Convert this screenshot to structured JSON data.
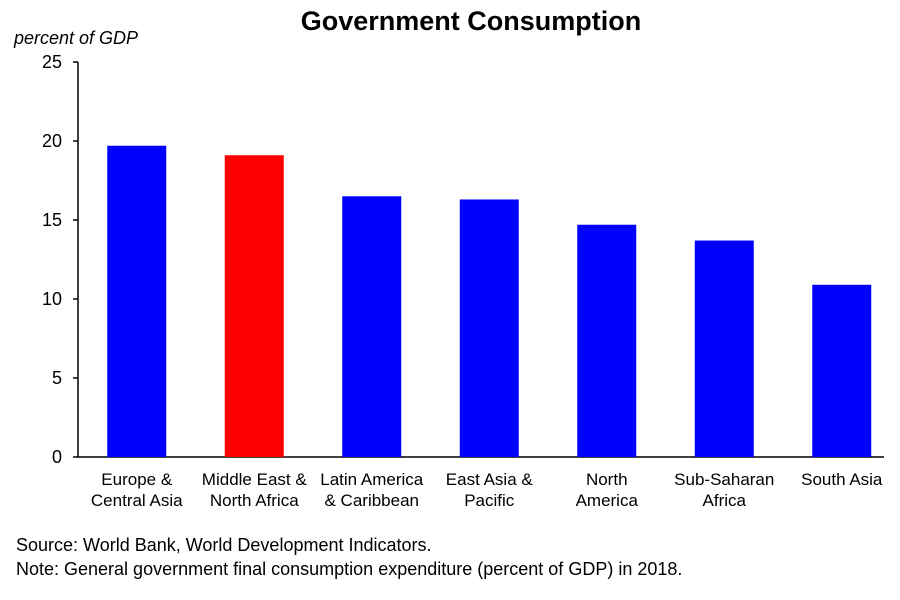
{
  "chart_data": {
    "type": "bar",
    "title": "Government Consumption",
    "ylabel": "percent of GDP",
    "xlabel": "",
    "ylim": [
      0,
      25
    ],
    "yticks": [
      0,
      5,
      10,
      15,
      20,
      25
    ],
    "grid": false,
    "categories": [
      [
        "Europe &",
        "Central Asia"
      ],
      [
        "Middle East &",
        "North Africa"
      ],
      [
        "Latin America",
        "& Caribbean"
      ],
      [
        "East Asia &",
        "Pacific"
      ],
      [
        "North",
        "America"
      ],
      [
        "Sub-Saharan",
        "Africa"
      ],
      [
        "South Asia"
      ]
    ],
    "values": [
      19.7,
      19.1,
      16.5,
      16.3,
      14.7,
      13.7,
      10.9
    ],
    "colors": [
      "#0000FF",
      "#FF0000",
      "#0000FF",
      "#0000FF",
      "#0000FF",
      "#0000FF",
      "#0000FF"
    ]
  },
  "footer": {
    "source": "Source: World Bank, World Development Indicators.",
    "note": "Note: General government final consumption expenditure (percent of GDP) in 2018."
  }
}
